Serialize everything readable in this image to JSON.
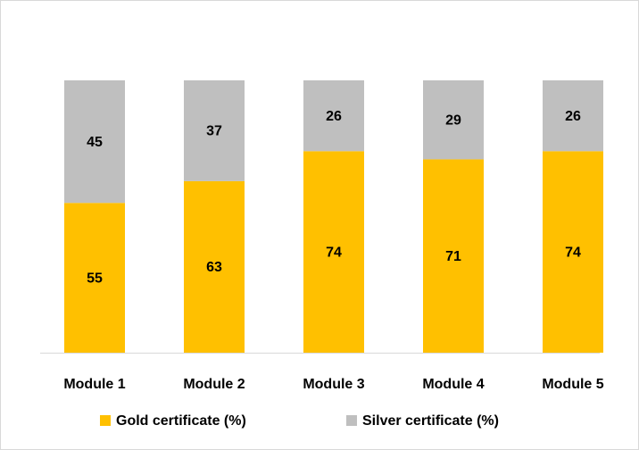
{
  "chart_data": {
    "type": "stacked_bar",
    "categories": [
      "Module 1",
      "Module 2",
      "Module 3",
      "Module 4",
      "Module 5"
    ],
    "series": [
      {
        "name": "Gold certificate (%)",
        "color": "#ffc000",
        "values": [
          55,
          63,
          74,
          71,
          74
        ]
      },
      {
        "name": "Silver certificate (%)",
        "color": "#bfbfbf",
        "values": [
          45,
          37,
          26,
          29,
          26
        ]
      }
    ],
    "ylim": [
      0,
      100
    ]
  }
}
